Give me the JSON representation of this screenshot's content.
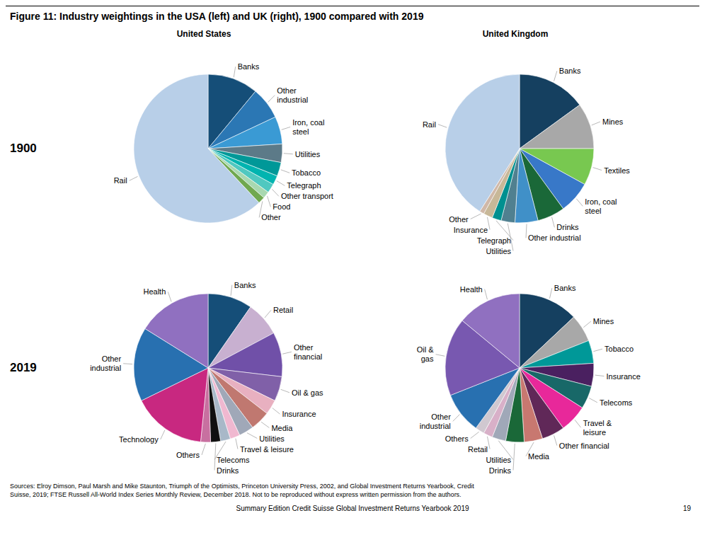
{
  "title": "Figure 11: Industry weightings in the USA (left) and UK (right), 1900 compared with 2019",
  "subtitles": [
    "United States",
    "United Kingdom"
  ],
  "row_labels": [
    "1900",
    "2019"
  ],
  "annotations": [
    "Sources: Elroy Dimson, Paul Marsh and Mike Staunton, Triumph of the Optimists, Princeton University Press, 2002, and Global Investment Returns Yearbook, Credit\nSuisse, 2019; FTSE Russell All-World Index Series Monthly Review, December 2018. Not to be reproduced without express written permission from the authors.",
    "Summary Edition Credit Suisse Global Investment Returns Yearbook 2019",
    "19"
  ],
  "chart_data": [
    {
      "type": "pie",
      "categories": [
        "Banks",
        "Other\nindustrial",
        "Iron, coal\nsteel",
        "Utilities",
        "Tobacco",
        "Telegraph",
        "Other transport",
        "Food",
        "Other",
        "Rail"
      ],
      "values": [
        11,
        7,
        6,
        4,
        3,
        2,
        2,
        1.5,
        1.5,
        62
      ],
      "colors": [
        "#154e78",
        "#2b77b4",
        "#3a9ad4",
        "#5c7a88",
        "#009898",
        "#00b4b0",
        "#50c8c0",
        "#a8d8b0",
        "#70a850",
        "#b8cfe8"
      ]
    },
    {
      "type": "pie",
      "categories": [
        "Banks",
        "Mines",
        "Textiles",
        "Iron, coal\nsteel",
        "Drinks",
        "Other industrial",
        "Utilities",
        "Telegraph",
        "Insurance",
        "Other",
        "Rail"
      ],
      "values": [
        15,
        10,
        8,
        7,
        6,
        5,
        3,
        2,
        2,
        1,
        41
      ],
      "colors": [
        "#154060",
        "#a8a8a8",
        "#78c850",
        "#3878c8",
        "#1a6838",
        "#4090c8",
        "#508090",
        "#009090",
        "#c8b898",
        "#d0b8a8",
        "#b8cfe8"
      ]
    },
    {
      "type": "pie",
      "categories": [
        "Banks",
        "Retail",
        "Other\nfinancial",
        "Oil & gas",
        "Insurance",
        "Media",
        "Utilities",
        "Travel & leisure",
        "Telecoms",
        "Drinks",
        "Others",
        "Technology",
        "Other\nindustrial",
        "Health"
      ],
      "values": [
        9,
        7,
        9,
        5,
        3,
        4,
        3,
        2,
        2,
        2,
        2,
        15,
        15,
        15
      ],
      "colors": [
        "#154e78",
        "#c8b0d0",
        "#7050a8",
        "#8060a8",
        "#e8b0c0",
        "#c07870",
        "#a0a8b8",
        "#f0b8d0",
        "#a8b8c8",
        "#101010",
        "#c870a0",
        "#c82880",
        "#2870b0",
        "#9070c0"
      ]
    },
    {
      "type": "pie",
      "categories": [
        "Banks",
        "Mines",
        "Tobacco",
        "Insurance",
        "Telecoms",
        "Travel &\nleisure",
        "Other financial",
        "Media",
        "Drinks",
        "Utilities",
        "Retail",
        "Others",
        "Other\nindustrial",
        "Oil &\ngas",
        "Health"
      ],
      "values": [
        13,
        6,
        5,
        5,
        5,
        6,
        5,
        4,
        4,
        3,
        2,
        2,
        9,
        17,
        14
      ],
      "colors": [
        "#154060",
        "#a8a8a8",
        "#009898",
        "#4a2060",
        "#186868",
        "#e8289a",
        "#602858",
        "#c87870",
        "#1a6838",
        "#a0a8b8",
        "#d8b0c8",
        "#d0c8d0",
        "#2870b0",
        "#7858b0",
        "#9070c0"
      ]
    }
  ]
}
